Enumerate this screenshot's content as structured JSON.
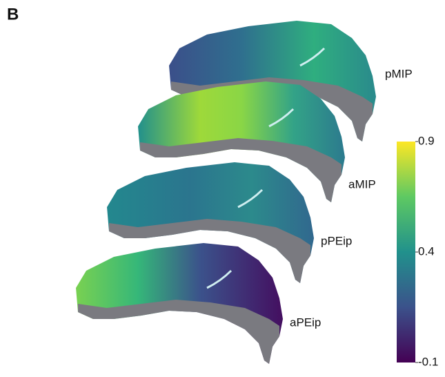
{
  "panel_label": "B",
  "surfaces": [
    {
      "label": "pMIP"
    },
    {
      "label": "aMIP"
    },
    {
      "label": "pPEip"
    },
    {
      "label": "aPEip"
    }
  ],
  "colorbar": {
    "lim": [
      -0.1,
      0.9
    ],
    "ticks": [
      0.9,
      0.4,
      -0.1
    ]
  }
}
